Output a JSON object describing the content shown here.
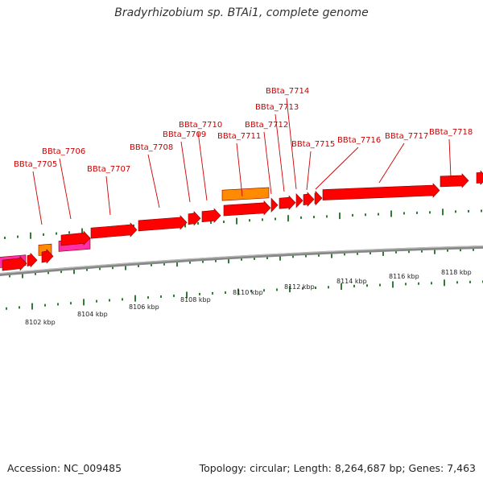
{
  "title": "Bradyrhizobium sp. BTAi1, complete genome",
  "footer": {
    "accession": "Accession: NC_009485",
    "summary": "Topology: circular; Length: 8,264,687 bp; Genes: 7,463"
  },
  "colors": {
    "cds": "#ff0000",
    "trna_rna": "#ff8c00",
    "other": "#ff2fa8",
    "label": "#cc0000",
    "tick": "#2e7d32",
    "backbone": "#888888"
  },
  "gene_labels": [
    "BBta_7705",
    "BBta_7706",
    "BBta_7707",
    "BBta_7708",
    "BBta_7709",
    "BBta_7710",
    "BBta_7711",
    "BBta_7712",
    "BBta_7713",
    "BBta_7714",
    "BBta_7715",
    "BBta_7716",
    "BBta_7717",
    "BBta_7718"
  ],
  "scale_labels": [
    "8102 kbp",
    "8104 kbp",
    "8106 kbp",
    "8108 kbp",
    "8110 kbp",
    "8112 kbp",
    "8114 kbp",
    "8116 kbp",
    "8118 kbp"
  ]
}
